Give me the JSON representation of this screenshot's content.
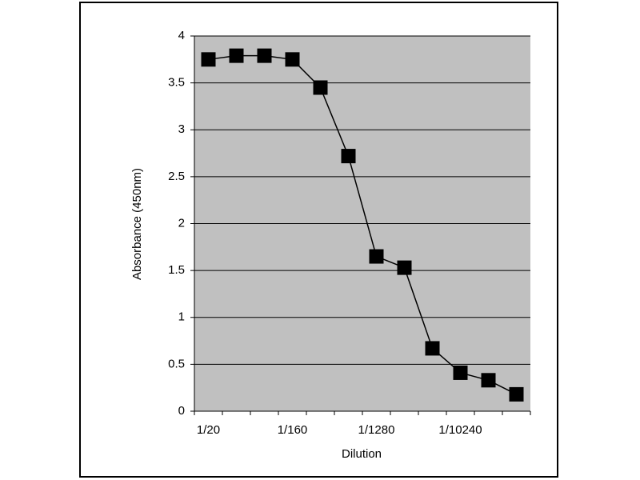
{
  "chart_data": {
    "type": "line",
    "x_label": "Dilution",
    "y_label": "Absorbance (450nm)",
    "categories": [
      "1/20",
      null,
      null,
      "1/160",
      null,
      null,
      "1/1280",
      null,
      null,
      "1/10240",
      null,
      null
    ],
    "series": [
      {
        "color": "#000000",
        "values": [
          3.75,
          3.79,
          3.79,
          3.75,
          3.45,
          2.72,
          1.65,
          1.53,
          0.67,
          0.41,
          0.33,
          0.18
        ]
      }
    ],
    "ylim": [
      0,
      4
    ],
    "yticks": [
      0,
      0.5,
      1,
      1.5,
      2,
      2.5,
      3,
      3.5,
      4
    ],
    "grid": true,
    "background": "#c0c0c0"
  }
}
